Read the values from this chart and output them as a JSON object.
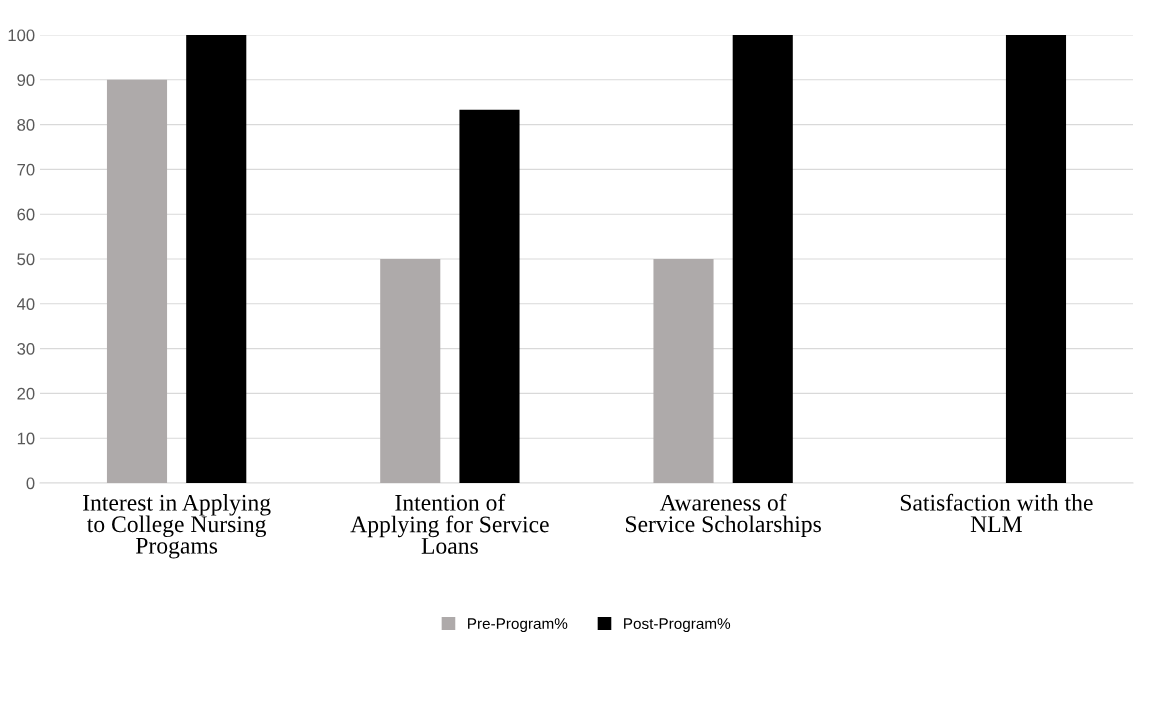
{
  "chart_data": {
    "type": "bar",
    "categories": [
      "Interest in Applying to College Nursing Progams",
      "Intention of Applying for Service Loans",
      "Awareness of Service Scholarships",
      "Satisfaction with the NLM"
    ],
    "series": [
      {
        "name": "Pre-Program%",
        "color": "#aeaaaa",
        "values": [
          90,
          50,
          50,
          null
        ]
      },
      {
        "name": "Post-Program%",
        "color": "#000000",
        "values": [
          100,
          83.3,
          100,
          100
        ]
      }
    ],
    "ylim": [
      0,
      100
    ],
    "yticks": [
      0,
      10,
      20,
      30,
      40,
      50,
      60,
      70,
      80,
      90,
      100
    ],
    "grid": "y",
    "legend": "bottom"
  }
}
